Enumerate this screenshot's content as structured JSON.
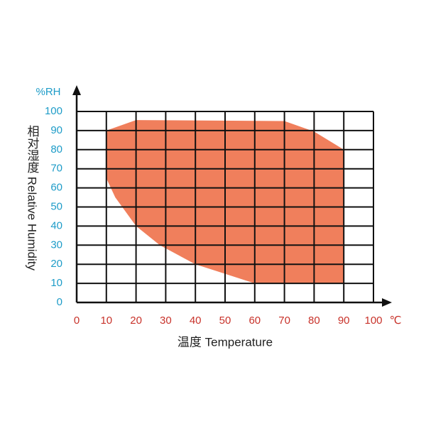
{
  "chart_data": {
    "type": "area",
    "x_label": "温度 Temperature",
    "y_label": "相对湿度 Relative Humidity",
    "x_unit": "℃",
    "y_unit": "%RH",
    "x": [
      10,
      20,
      70,
      80,
      90,
      90,
      60,
      40,
      28,
      20,
      13,
      10
    ],
    "values": [
      90,
      95.5,
      95,
      89.5,
      80,
      10,
      10,
      20,
      30,
      40,
      55,
      65
    ],
    "color": "#f07f5c",
    "xlim": [
      0,
      100
    ],
    "xticks": [
      0,
      10,
      20,
      30,
      40,
      50,
      60,
      70,
      80,
      90,
      100
    ],
    "ylim": [
      0,
      100
    ],
    "yticks": [
      0,
      10,
      20,
      30,
      40,
      50,
      60,
      70,
      80,
      90,
      100
    ],
    "grid": true
  }
}
